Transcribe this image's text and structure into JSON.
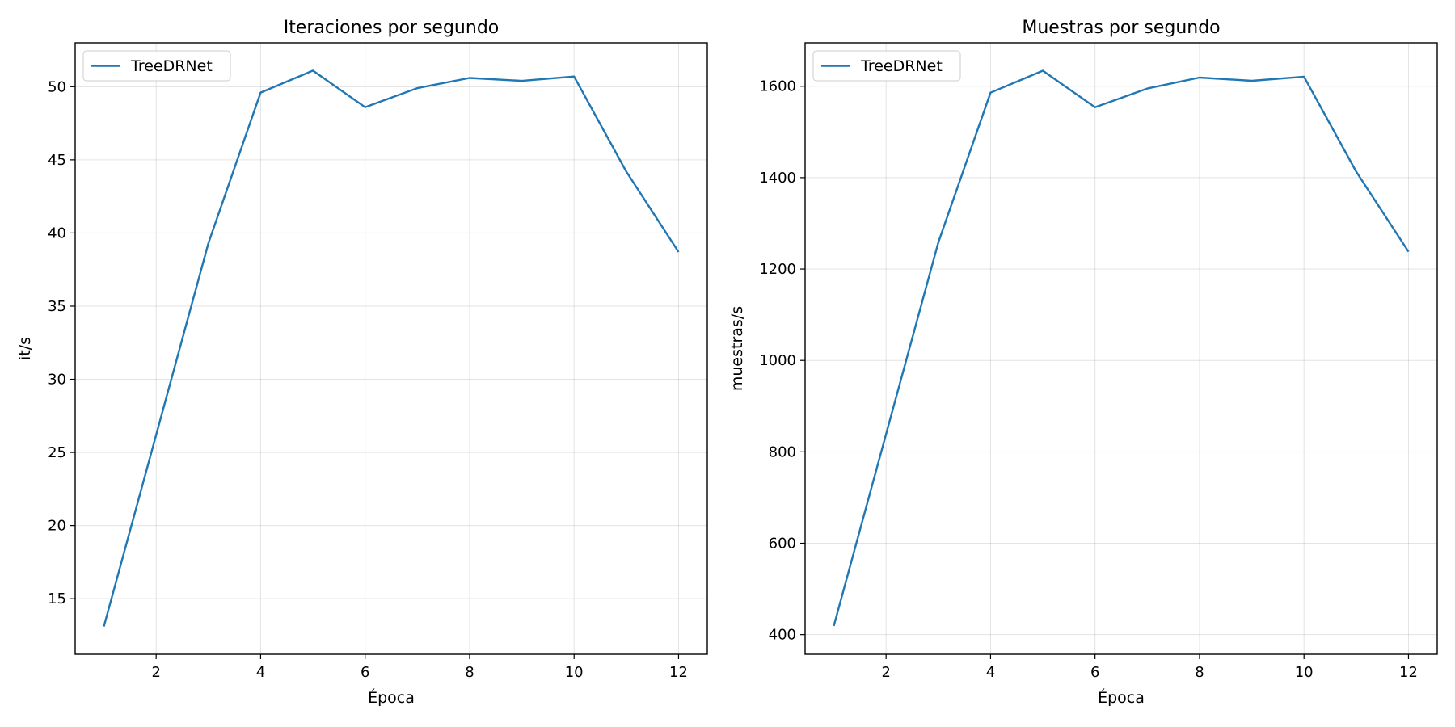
{
  "chart_data": [
    {
      "type": "line",
      "title": "Iteraciones por segundo",
      "xlabel": "Época",
      "ylabel": "it/s",
      "xlim": [
        0.45,
        12.55
      ],
      "ylim": [
        11.2,
        53.0
      ],
      "xticks": [
        2,
        4,
        6,
        8,
        10,
        12
      ],
      "yticks": [
        15,
        20,
        25,
        30,
        35,
        40,
        45,
        50
      ],
      "grid": true,
      "legend_position": "top-left",
      "color": "#1f77b4",
      "series": [
        {
          "name": "TreeDRNet",
          "x": [
            1,
            2,
            3,
            4,
            5,
            6,
            7,
            8,
            9,
            10,
            11,
            12
          ],
          "y": [
            13.1,
            26.2,
            39.3,
            49.6,
            51.1,
            48.6,
            49.9,
            50.6,
            50.4,
            50.7,
            44.2,
            38.7
          ]
        }
      ]
    },
    {
      "type": "line",
      "title": "Muestras por segundo",
      "xlabel": "Época",
      "ylabel": "muestras/s",
      "xlim": [
        0.45,
        12.55
      ],
      "ylim": [
        357,
        1695
      ],
      "xticks": [
        2,
        4,
        6,
        8,
        10,
        12
      ],
      "yticks": [
        400,
        600,
        800,
        1000,
        1200,
        1400,
        1600
      ],
      "grid": true,
      "legend_position": "top-left",
      "color": "#1f77b4",
      "series": [
        {
          "name": "TreeDRNet",
          "x": [
            1,
            2,
            3,
            4,
            5,
            6,
            7,
            8,
            9,
            10,
            11,
            12
          ],
          "y": [
            419,
            839,
            1258,
            1586,
            1634,
            1554,
            1595,
            1619,
            1612,
            1621,
            1413,
            1238
          ]
        }
      ]
    }
  ]
}
